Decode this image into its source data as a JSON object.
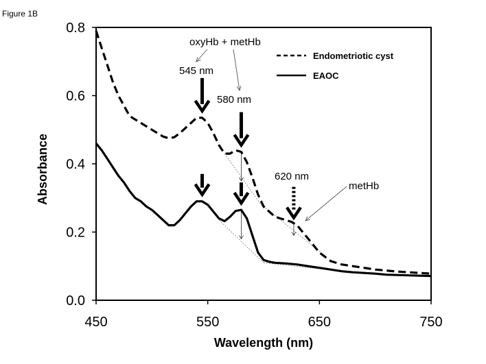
{
  "figure_label": "Figure 1B",
  "chart_data": {
    "type": "line",
    "xlabel": "Wavelength (nm)",
    "ylabel": "Absorbance",
    "xlim": [
      450,
      750
    ],
    "ylim": [
      0,
      0.8
    ],
    "xticks": [
      450,
      550,
      650,
      750
    ],
    "yticks": [
      0.0,
      0.2,
      0.4,
      0.6,
      0.8
    ],
    "ytick_labels": [
      "0.0",
      "0.2",
      "0.4",
      "0.6",
      "0.8"
    ],
    "grid": false,
    "legend_position": "top-right",
    "series": [
      {
        "name": "Endometriotic cyst",
        "style": "dashed",
        "x": [
          450,
          455,
          460,
          465,
          470,
          475,
          480,
          485,
          490,
          495,
          500,
          505,
          510,
          515,
          520,
          525,
          530,
          535,
          540,
          545,
          550,
          555,
          560,
          565,
          570,
          575,
          580,
          585,
          590,
          595,
          600,
          605,
          610,
          615,
          620,
          625,
          630,
          635,
          640,
          645,
          650,
          660,
          670,
          680,
          690,
          700,
          710,
          720,
          730,
          740,
          750
        ],
        "y": [
          0.79,
          0.74,
          0.69,
          0.64,
          0.6,
          0.57,
          0.54,
          0.53,
          0.52,
          0.51,
          0.5,
          0.49,
          0.48,
          0.475,
          0.478,
          0.49,
          0.505,
          0.52,
          0.535,
          0.535,
          0.52,
          0.49,
          0.455,
          0.43,
          0.43,
          0.44,
          0.435,
          0.405,
          0.36,
          0.31,
          0.275,
          0.26,
          0.245,
          0.24,
          0.235,
          0.23,
          0.22,
          0.2,
          0.18,
          0.16,
          0.14,
          0.115,
          0.105,
          0.1,
          0.095,
          0.09,
          0.087,
          0.084,
          0.082,
          0.08,
          0.078
        ]
      },
      {
        "name": "EAOC",
        "style": "solid",
        "x": [
          450,
          455,
          460,
          465,
          470,
          475,
          480,
          485,
          490,
          495,
          500,
          505,
          510,
          515,
          520,
          525,
          530,
          535,
          540,
          545,
          550,
          555,
          560,
          565,
          570,
          575,
          580,
          585,
          590,
          595,
          600,
          605,
          610,
          620,
          630,
          640,
          650,
          660,
          670,
          680,
          690,
          700,
          710,
          720,
          730,
          740,
          750
        ],
        "y": [
          0.46,
          0.44,
          0.415,
          0.39,
          0.365,
          0.345,
          0.32,
          0.3,
          0.29,
          0.275,
          0.265,
          0.25,
          0.235,
          0.22,
          0.22,
          0.235,
          0.255,
          0.275,
          0.29,
          0.29,
          0.28,
          0.26,
          0.24,
          0.232,
          0.245,
          0.262,
          0.265,
          0.24,
          0.19,
          0.14,
          0.118,
          0.113,
          0.11,
          0.108,
          0.105,
          0.1,
          0.095,
          0.09,
          0.085,
          0.082,
          0.08,
          0.078,
          0.075,
          0.074,
          0.073,
          0.072,
          0.071
        ]
      }
    ],
    "annotations": {
      "oxy_label": "oxyHb + metHb",
      "met_label": "metHb",
      "nm545": "545 nm",
      "nm580": "580 nm",
      "nm620": "620 nm"
    }
  }
}
